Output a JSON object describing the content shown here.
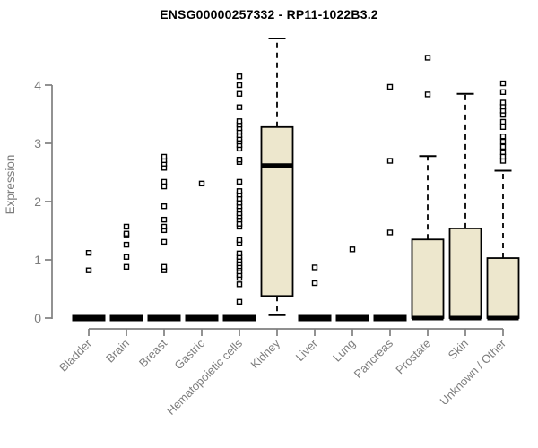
{
  "chart_data": {
    "type": "boxplot",
    "title": "ENSG00000257332 - RP11-1022B3.2",
    "ylabel": "Expression",
    "yticks": [
      0,
      1,
      2,
      3,
      4
    ],
    "ylim": [
      0,
      4.9
    ],
    "grid": false,
    "legend": "none",
    "colors": {
      "box_fill": "#EDE7CD",
      "box_stroke": "#000000",
      "whisker": "#000000",
      "axis": "#7F7F7F",
      "label": "#7D7D7D",
      "title": "#000000",
      "background": "#FFFFFF"
    },
    "categories": [
      "Bladder",
      "Brain",
      "Breast",
      "Gastric",
      "Hematopoietic cells",
      "Kidney",
      "Liver",
      "Lung",
      "Pancreas",
      "Prostate",
      "Skin",
      "Unknown / Other"
    ],
    "boxes": [
      {
        "category": "Bladder",
        "low": 0,
        "q1": 0,
        "median": 0,
        "q3": 0,
        "high": 0,
        "outliers": [
          0.82,
          1.12
        ]
      },
      {
        "category": "Brain",
        "low": 0,
        "q1": 0,
        "median": 0,
        "q3": 0,
        "high": 0,
        "outliers": [
          0.88,
          1.05,
          1.26,
          1.42,
          1.45,
          1.57
        ]
      },
      {
        "category": "Breast",
        "low": 0,
        "q1": 0,
        "median": 0,
        "q3": 0,
        "high": 0,
        "outliers": [
          0.82,
          0.88,
          1.31,
          1.51,
          1.57,
          1.69,
          1.92,
          2.26,
          2.34,
          2.58,
          2.65,
          2.71,
          2.77
        ]
      },
      {
        "category": "Gastric",
        "low": 0,
        "q1": 0,
        "median": 0,
        "q3": 0,
        "high": 0,
        "outliers": [
          2.31
        ]
      },
      {
        "category": "Hematopoietic cells",
        "low": 0,
        "q1": 0,
        "median": 0,
        "q3": 0,
        "high": 0,
        "outliers": [
          0.28,
          0.58,
          0.69,
          0.74,
          0.8,
          0.85,
          0.89,
          0.94,
          1.0,
          1.05,
          1.11,
          1.29,
          1.34,
          1.57,
          1.62,
          1.69,
          1.75,
          1.8,
          1.86,
          1.92,
          1.98,
          2.05,
          2.12,
          2.18,
          2.34,
          2.68,
          2.72,
          2.91,
          2.97,
          3.03,
          3.08,
          3.14,
          3.2,
          3.26,
          3.32,
          3.38,
          3.62,
          3.85,
          4.0,
          4.15
        ]
      },
      {
        "category": "Kidney",
        "low": 0.05,
        "q1": 0.38,
        "median": 2.62,
        "q3": 3.28,
        "high": 4.8,
        "outliers": []
      },
      {
        "category": "Liver",
        "low": 0,
        "q1": 0,
        "median": 0,
        "q3": 0,
        "high": 0,
        "outliers": [
          0.6,
          0.87
        ]
      },
      {
        "category": "Lung",
        "low": 0,
        "q1": 0,
        "median": 0,
        "q3": 0,
        "high": 0,
        "outliers": [
          1.18
        ]
      },
      {
        "category": "Pancreas",
        "low": 0,
        "q1": 0,
        "median": 0,
        "q3": 0,
        "high": 0,
        "outliers": [
          1.47,
          2.7,
          3.97
        ]
      },
      {
        "category": "Prostate",
        "low": 0,
        "q1": 0,
        "median": 0,
        "q3": 1.35,
        "high": 2.78,
        "outliers": [
          3.84,
          4.47
        ]
      },
      {
        "category": "Skin",
        "low": 0,
        "q1": 0,
        "median": 0,
        "q3": 1.54,
        "high": 3.85,
        "outliers": []
      },
      {
        "category": "Unknown / Other",
        "low": 0,
        "q1": 0,
        "median": 0,
        "q3": 1.03,
        "high": 2.53,
        "outliers": [
          2.7,
          2.77,
          2.85,
          2.94,
          3.03,
          3.12,
          3.28,
          3.37,
          3.49,
          3.56,
          3.63,
          3.7,
          3.88,
          4.03
        ]
      }
    ]
  }
}
